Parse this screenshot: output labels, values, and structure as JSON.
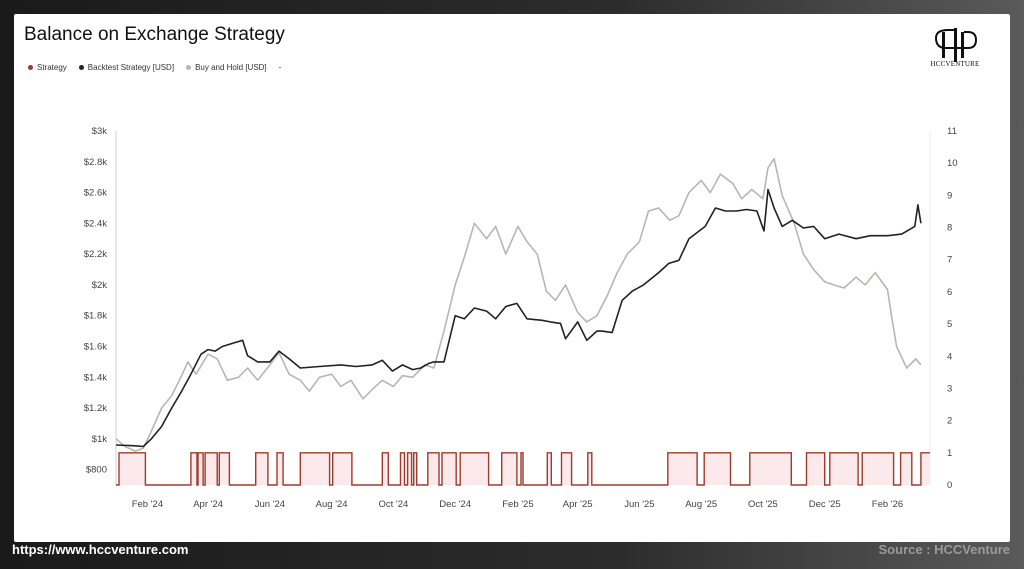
{
  "footer": {
    "url": "https://www.hccventure.com",
    "source": "Source : HCCVenture"
  },
  "logo": {
    "text": "HCCVENTURE"
  },
  "colors": {
    "strategy": "#a03a2a",
    "backtest": "#222222",
    "buyhold": "#b8b6b3",
    "axis": "#cfcfcf",
    "tick": "#444444",
    "strategy_fill": "#fbe9ec"
  },
  "chart_data": {
    "type": "line",
    "title": "Balance on Exchange Strategy",
    "legend": [
      "Strategy",
      "Backtest Strategy [USD]",
      "Buy and Hold [USD]",
      "-"
    ],
    "legend_placement": "top-left",
    "x_tick_labels": [
      "Feb '24",
      "Apr '24",
      "Jun '24",
      "Aug '24",
      "Oct '24",
      "Dec '24",
      "Feb '25",
      "Apr '25",
      "Jun '25",
      "Aug '25",
      "Oct '25",
      "Dec '25",
      "Feb '26"
    ],
    "x_range": [
      "2024-01-01",
      "2026-03-15"
    ],
    "y_left": {
      "range": [
        700,
        3000
      ],
      "tick_values": [
        800,
        1000,
        1200,
        1400,
        1600,
        1800,
        2000,
        2200,
        2400,
        2600,
        2800,
        3000
      ],
      "tick_labels": [
        "$800",
        "$1k",
        "$1.2k",
        "$1.4k",
        "$1.6k",
        "$1.8k",
        "$2k",
        "$2.2k",
        "$2.4k",
        "$2.6k",
        "$2.8k",
        "$3k"
      ]
    },
    "y_right": {
      "range": [
        0,
        11
      ],
      "tick_labels": [
        "0",
        "1",
        "2",
        "3",
        "4",
        "5",
        "6",
        "7",
        "8",
        "9",
        "10",
        "11"
      ]
    },
    "grid": false,
    "series": [
      {
        "name": "Backtest Strategy [USD]",
        "axis": "left",
        "x": [
          "2024-01-01",
          "2024-01-20",
          "2024-01-28",
          "2024-02-05",
          "2024-02-15",
          "2024-02-25",
          "2024-03-05",
          "2024-03-15",
          "2024-03-25",
          "2024-04-01",
          "2024-04-08",
          "2024-04-15",
          "2024-04-25",
          "2024-05-05",
          "2024-05-10",
          "2024-05-20",
          "2024-06-01",
          "2024-06-10",
          "2024-06-20",
          "2024-07-01",
          "2024-07-20",
          "2024-08-10",
          "2024-08-25",
          "2024-09-10",
          "2024-09-20",
          "2024-09-30",
          "2024-10-10",
          "2024-10-20",
          "2024-10-28",
          "2024-11-05",
          "2024-11-10",
          "2024-11-20",
          "2024-12-01",
          "2024-12-10",
          "2024-12-20",
          "2025-01-01",
          "2025-01-10",
          "2025-01-20",
          "2025-01-31",
          "2025-02-10",
          "2025-02-25",
          "2025-03-05",
          "2025-03-15",
          "2025-03-20",
          "2025-04-01",
          "2025-04-10",
          "2025-04-20",
          "2025-04-25",
          "2025-05-05",
          "2025-05-15",
          "2025-05-25",
          "2025-06-05",
          "2025-06-20",
          "2025-06-30",
          "2025-07-10",
          "2025-07-20",
          "2025-08-05",
          "2025-08-15",
          "2025-08-25",
          "2025-09-05",
          "2025-09-15",
          "2025-09-25",
          "2025-10-02",
          "2025-10-06",
          "2025-10-12",
          "2025-10-20",
          "2025-10-30",
          "2025-11-10",
          "2025-11-20",
          "2025-12-01",
          "2025-12-15",
          "2026-01-01",
          "2026-01-15",
          "2026-02-01",
          "2026-02-15",
          "2026-02-28",
          "2026-03-03",
          "2026-03-06"
        ],
        "y": [
          960,
          955,
          950,
          1000,
          1080,
          1200,
          1300,
          1420,
          1550,
          1580,
          1570,
          1600,
          1620,
          1640,
          1540,
          1500,
          1500,
          1570,
          1520,
          1460,
          1470,
          1480,
          1470,
          1480,
          1510,
          1440,
          1480,
          1450,
          1460,
          1490,
          1500,
          1500,
          1800,
          1780,
          1850,
          1830,
          1780,
          1860,
          1880,
          1780,
          1770,
          1760,
          1750,
          1650,
          1760,
          1640,
          1700,
          1700,
          1690,
          1900,
          1960,
          2000,
          2080,
          2140,
          2160,
          2300,
          2380,
          2500,
          2480,
          2480,
          2490,
          2480,
          2350,
          2620,
          2500,
          2380,
          2420,
          2370,
          2380,
          2300,
          2330,
          2300,
          2320,
          2320,
          2330,
          2380,
          2520,
          2400
        ]
      },
      {
        "name": "Buy and Hold [USD]",
        "axis": "left",
        "x": [
          "2024-01-01",
          "2024-01-10",
          "2024-01-20",
          "2024-01-28",
          "2024-02-05",
          "2024-02-15",
          "2024-02-25",
          "2024-03-05",
          "2024-03-12",
          "2024-03-20",
          "2024-04-01",
          "2024-04-10",
          "2024-04-20",
          "2024-05-01",
          "2024-05-10",
          "2024-05-20",
          "2024-06-01",
          "2024-06-10",
          "2024-06-20",
          "2024-07-01",
          "2024-07-10",
          "2024-07-20",
          "2024-08-01",
          "2024-08-10",
          "2024-08-20",
          "2024-09-01",
          "2024-09-10",
          "2024-09-20",
          "2024-10-01",
          "2024-10-10",
          "2024-10-20",
          "2024-11-01",
          "2024-11-10",
          "2024-11-20",
          "2024-12-01",
          "2024-12-10",
          "2024-12-20",
          "2025-01-01",
          "2025-01-10",
          "2025-01-20",
          "2025-02-01",
          "2025-02-10",
          "2025-02-20",
          "2025-03-01",
          "2025-03-10",
          "2025-03-20",
          "2025-04-01",
          "2025-04-10",
          "2025-04-20",
          "2025-05-01",
          "2025-05-10",
          "2025-05-20",
          "2025-06-01",
          "2025-06-10",
          "2025-06-20",
          "2025-07-01",
          "2025-07-10",
          "2025-07-20",
          "2025-08-01",
          "2025-08-10",
          "2025-08-20",
          "2025-09-01",
          "2025-09-10",
          "2025-09-20",
          "2025-10-01",
          "2025-10-06",
          "2025-10-12",
          "2025-10-20",
          "2025-11-01",
          "2025-11-10",
          "2025-11-20",
          "2025-12-01",
          "2025-12-10",
          "2025-12-20",
          "2026-01-01",
          "2026-01-10",
          "2026-01-20",
          "2026-02-01",
          "2026-02-05",
          "2026-02-10",
          "2026-02-20",
          "2026-03-01",
          "2026-03-06"
        ],
        "y": [
          1000,
          950,
          920,
          940,
          1050,
          1200,
          1280,
          1400,
          1500,
          1420,
          1550,
          1520,
          1380,
          1400,
          1460,
          1380,
          1480,
          1560,
          1420,
          1380,
          1310,
          1400,
          1420,
          1340,
          1380,
          1260,
          1320,
          1380,
          1340,
          1410,
          1400,
          1480,
          1460,
          1700,
          2000,
          2180,
          2400,
          2300,
          2380,
          2200,
          2380,
          2280,
          2200,
          1960,
          1900,
          2000,
          1820,
          1760,
          1800,
          1940,
          2080,
          2200,
          2280,
          2480,
          2500,
          2420,
          2450,
          2600,
          2680,
          2600,
          2720,
          2660,
          2560,
          2620,
          2560,
          2760,
          2820,
          2580,
          2400,
          2200,
          2100,
          2020,
          2000,
          1980,
          2050,
          2000,
          2080,
          1970,
          1800,
          1600,
          1460,
          1520,
          1480
        ]
      },
      {
        "name": "Strategy",
        "axis": "right",
        "step": true,
        "x": [
          "2024-01-01",
          "2024-01-04",
          "2024-01-30",
          "2024-03-15",
          "2024-03-21",
          "2024-03-22",
          "2024-03-27",
          "2024-03-29",
          "2024-04-10",
          "2024-04-12",
          "2024-04-22",
          "2024-05-18",
          "2024-05-30",
          "2024-06-08",
          "2024-06-14",
          "2024-07-01",
          "2024-07-30",
          "2024-08-02",
          "2024-08-21",
          "2024-09-20",
          "2024-09-26",
          "2024-10-08",
          "2024-10-12",
          "2024-10-15",
          "2024-10-19",
          "2024-10-21",
          "2024-10-24",
          "2024-11-04",
          "2024-11-15",
          "2024-11-18",
          "2024-12-02",
          "2024-12-06",
          "2025-01-03",
          "2025-01-16",
          "2025-01-31",
          "2025-02-04",
          "2025-02-06",
          "2025-03-02",
          "2025-03-06",
          "2025-03-16",
          "2025-03-26",
          "2025-04-11",
          "2025-04-15",
          "2025-06-29",
          "2025-07-28",
          "2025-08-04",
          "2025-08-30",
          "2025-09-18",
          "2025-10-29",
          "2025-11-13",
          "2025-12-01",
          "2025-12-06",
          "2026-01-03",
          "2026-01-07",
          "2026-02-07",
          "2026-02-14",
          "2026-02-25",
          "2026-03-06"
        ],
        "y": [
          0,
          1,
          0,
          1,
          0,
          1,
          0,
          1,
          0,
          1,
          0,
          1,
          0,
          1,
          0,
          1,
          0,
          1,
          0,
          1,
          0,
          1,
          0,
          1,
          0,
          1,
          0,
          1,
          0,
          1,
          0,
          1,
          0,
          1,
          0,
          1,
          0,
          1,
          0,
          1,
          0,
          1,
          0,
          1,
          0,
          1,
          0,
          1,
          0,
          1,
          0,
          1,
          0,
          1,
          0,
          1,
          0,
          1
        ]
      }
    ]
  }
}
